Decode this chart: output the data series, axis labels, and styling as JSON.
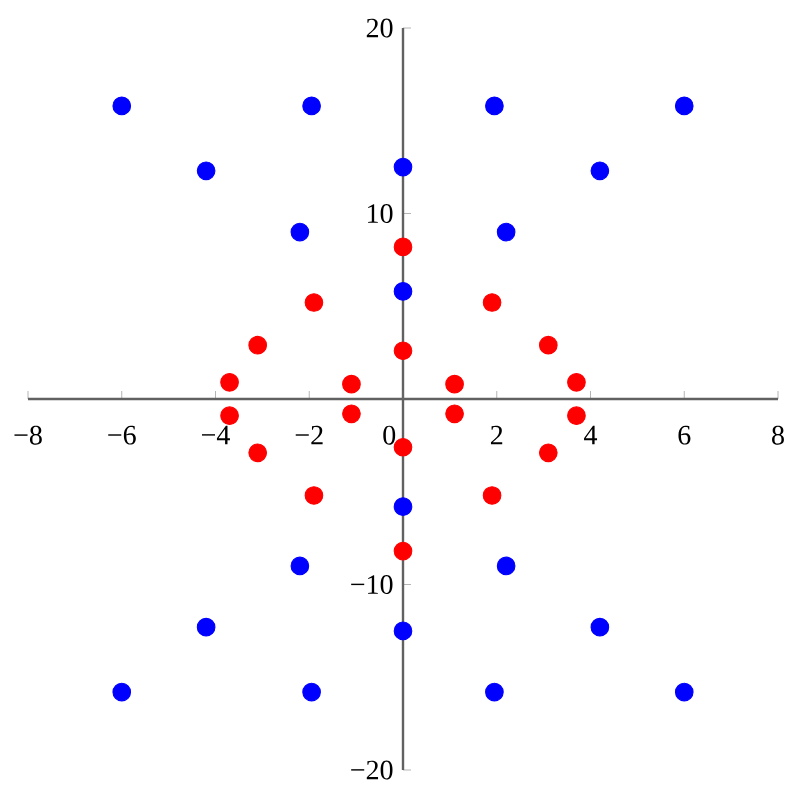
{
  "chart_data": {
    "type": "scatter",
    "series": [
      {
        "color": "#0000ff",
        "x": [
          -6,
          -1.95,
          1.95,
          6,
          -4.2,
          0,
          4.2,
          -2.2,
          2.2,
          0,
          -6,
          -1.95,
          1.95,
          6,
          -4.2,
          0,
          4.2,
          -2.2,
          2.2,
          0
        ],
        "values": [
          15.8,
          15.8,
          15.8,
          15.8,
          12.3,
          12.5,
          12.3,
          9,
          9,
          5.8,
          -15.8,
          -15.8,
          -15.8,
          -15.8,
          -12.3,
          -12.5,
          -12.3,
          -9,
          -9,
          -5.8
        ]
      },
      {
        "color": "#ff0000",
        "x": [
          0,
          -1.9,
          1.9,
          -3.1,
          3.1,
          0,
          -3.7,
          3.7,
          -1.1,
          1.1,
          0,
          -1.9,
          1.9,
          -3.1,
          3.1,
          0,
          -3.7,
          3.7,
          -1.1,
          1.1
        ],
        "values": [
          8.2,
          5.2,
          5.2,
          2.9,
          2.9,
          2.6,
          0.9,
          0.9,
          0.8,
          0.8,
          -8.2,
          -5.2,
          -5.2,
          -2.9,
          -2.9,
          -2.6,
          -0.9,
          -0.9,
          -0.8,
          -0.8
        ]
      }
    ],
    "xlim": [
      -8,
      8
    ],
    "ylim": [
      -20,
      20
    ],
    "xticks": [
      {
        "value": -8,
        "label": "−8"
      },
      {
        "value": -6,
        "label": "−6"
      },
      {
        "value": -4,
        "label": "−4"
      },
      {
        "value": -2,
        "label": "−2"
      },
      0,
      2,
      4,
      6,
      8
    ],
    "yticks": [
      {
        "value": -20,
        "label": "−20"
      },
      {
        "value": -10,
        "label": "−10"
      },
      10,
      20
    ],
    "marker": "circle"
  }
}
